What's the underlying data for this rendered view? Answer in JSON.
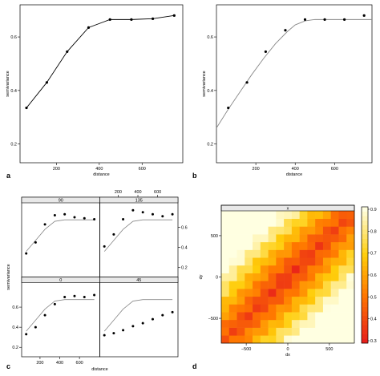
{
  "chart_data": [
    {
      "panel": "a",
      "type": "line",
      "xlabel": "distance",
      "ylabel": "semivariance",
      "xlim": [
        30,
        790
      ],
      "ylim": [
        0.13,
        0.72
      ],
      "xticks": [
        200,
        400,
        600
      ],
      "yticks": [
        0.2,
        0.4,
        0.6
      ],
      "x": [
        60,
        155,
        250,
        350,
        450,
        550,
        650,
        750
      ],
      "y": [
        0.335,
        0.43,
        0.545,
        0.635,
        0.665,
        0.665,
        0.668,
        0.68
      ]
    },
    {
      "panel": "b",
      "type": "scatter",
      "xlabel": "distance",
      "ylabel": "semivariance",
      "xlim": [
        0,
        790
      ],
      "ylim": [
        0.13,
        0.72
      ],
      "xticks": [
        200,
        400,
        600
      ],
      "yticks": [
        0.2,
        0.4,
        0.6
      ],
      "x": [
        60,
        155,
        250,
        350,
        450,
        550,
        650,
        750
      ],
      "y": [
        0.335,
        0.43,
        0.545,
        0.625,
        0.665,
        0.665,
        0.665,
        0.68
      ],
      "fit_x": [
        0,
        60,
        120,
        180,
        240,
        300,
        360,
        400,
        450,
        500,
        600,
        700,
        790
      ],
      "fit_y": [
        0.26,
        0.33,
        0.395,
        0.46,
        0.52,
        0.575,
        0.62,
        0.645,
        0.66,
        0.665,
        0.665,
        0.665,
        0.665
      ]
    },
    {
      "panel": "c",
      "type": "scatter",
      "xlabel": "distance",
      "ylabel": "semivariance",
      "xlim": [
        30,
        790
      ],
      "ylim": [
        0.13,
        0.82
      ],
      "xticks": [
        200,
        400,
        600
      ],
      "yticks": [
        0.2,
        0.4,
        0.6
      ],
      "panels": [
        {
          "label": "90",
          "x": [
            60,
            155,
            250,
            350,
            450,
            550,
            650,
            750
          ],
          "y": [
            0.34,
            0.45,
            0.63,
            0.72,
            0.73,
            0.7,
            0.69,
            0.68
          ],
          "fit_x": [
            60,
            155,
            250,
            350,
            450,
            550,
            650,
            750
          ],
          "fit_y": [
            0.36,
            0.47,
            0.58,
            0.66,
            0.675,
            0.675,
            0.675,
            0.675
          ]
        },
        {
          "label": "135",
          "x": [
            60,
            155,
            250,
            350,
            450,
            550,
            650,
            750
          ],
          "y": [
            0.41,
            0.53,
            0.68,
            0.77,
            0.75,
            0.73,
            0.71,
            0.73
          ],
          "fit_x": [
            60,
            155,
            250,
            350,
            450,
            550,
            650,
            750
          ],
          "fit_y": [
            0.36,
            0.47,
            0.58,
            0.66,
            0.675,
            0.675,
            0.675,
            0.675
          ]
        },
        {
          "label": "0",
          "x": [
            60,
            155,
            250,
            350,
            450,
            550,
            650,
            750
          ],
          "y": [
            0.33,
            0.4,
            0.52,
            0.63,
            0.7,
            0.71,
            0.7,
            0.72
          ],
          "fit_x": [
            60,
            155,
            250,
            350,
            450,
            550,
            650,
            750
          ],
          "fit_y": [
            0.36,
            0.47,
            0.58,
            0.66,
            0.675,
            0.675,
            0.675,
            0.675
          ]
        },
        {
          "label": "45",
          "x": [
            60,
            155,
            250,
            350,
            450,
            550,
            650,
            750
          ],
          "y": [
            0.32,
            0.34,
            0.37,
            0.41,
            0.44,
            0.48,
            0.52,
            0.55
          ],
          "fit_x": [
            60,
            155,
            250,
            350,
            450,
            550,
            650,
            750
          ],
          "fit_y": [
            0.36,
            0.47,
            0.58,
            0.66,
            0.675,
            0.675,
            0.675,
            0.675
          ]
        }
      ]
    },
    {
      "panel": "d",
      "type": "heatmap",
      "title": "x",
      "xlabel": "dx",
      "ylabel": "dy",
      "xlim": [
        -800,
        800
      ],
      "ylim": [
        -800,
        800
      ],
      "xticks": [
        -500,
        0,
        500
      ],
      "yticks": [
        -500,
        0,
        500
      ],
      "zlim": [
        0.3,
        0.9
      ],
      "zticks": [
        0.3,
        0.4,
        0.5,
        0.6,
        0.7,
        0.8,
        0.9
      ],
      "grid_n": 17,
      "colors": {
        "low": "#e8201a",
        "mid": "#ffb400",
        "high": "#ffffe0"
      }
    }
  ],
  "labels": {
    "a": "a",
    "b": "b",
    "c": "c",
    "d": "d"
  }
}
